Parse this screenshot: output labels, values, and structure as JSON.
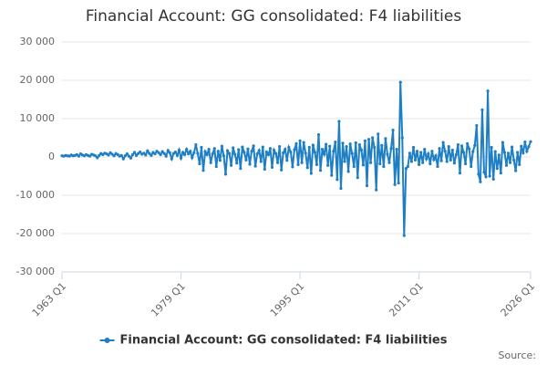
{
  "chart_data": {
    "type": "line",
    "title": "Financial Account: GG consolidated: F4 liabilities",
    "source": "Source:",
    "categories": [
      "1963 Q1",
      null,
      null,
      null,
      null,
      null,
      null,
      null,
      null,
      null,
      null,
      null,
      null,
      null,
      null,
      null,
      null,
      null,
      null,
      null,
      null,
      null,
      null,
      null,
      null,
      null,
      null,
      null,
      null,
      null,
      null,
      null,
      null,
      null,
      null,
      null,
      null,
      null,
      null,
      null,
      null,
      null,
      null,
      null,
      null,
      null,
      null,
      null,
      null,
      null,
      null,
      null,
      null,
      null,
      null,
      null,
      null,
      null,
      null,
      null,
      null,
      null,
      null,
      null,
      "1979 Q1",
      null,
      null,
      null,
      null,
      null,
      null,
      null,
      null,
      null,
      null,
      null,
      null,
      null,
      null,
      null,
      null,
      null,
      null,
      null,
      null,
      null,
      null,
      null,
      null,
      null,
      null,
      null,
      null,
      null,
      null,
      null,
      null,
      null,
      null,
      null,
      null,
      null,
      null,
      null,
      null,
      null,
      null,
      null,
      null,
      null,
      null,
      null,
      null,
      null,
      null,
      null,
      null,
      null,
      null,
      null,
      null,
      null,
      null,
      null,
      null,
      null,
      null,
      null,
      "1995 Q1",
      null,
      null,
      null,
      null,
      null,
      null,
      null,
      null,
      null,
      null,
      null,
      null,
      null,
      null,
      null,
      null,
      null,
      null,
      null,
      null,
      null,
      null,
      null,
      null,
      null,
      null,
      null,
      null,
      null,
      null,
      null,
      null,
      null,
      null,
      null,
      null,
      null,
      null,
      null,
      null,
      null,
      null,
      null,
      null,
      null,
      null,
      null,
      null,
      null,
      null,
      null,
      null,
      null,
      null,
      null,
      null,
      null,
      null,
      null,
      null,
      null,
      null,
      null,
      "2011 Q1",
      null,
      null,
      null,
      null,
      null,
      null,
      null,
      null,
      null,
      null,
      null,
      null,
      null,
      null,
      null,
      null,
      null,
      null,
      null,
      null,
      null,
      null,
      null,
      null,
      null,
      null,
      null,
      null,
      null,
      null,
      null,
      null,
      null,
      null,
      null,
      null,
      null,
      null,
      null,
      null,
      null,
      null,
      null,
      null,
      null,
      null,
      null,
      null,
      null,
      null,
      null,
      null,
      null,
      null,
      null,
      null,
      null,
      null,
      null,
      "2026 Q1"
    ],
    "series": [
      {
        "name": "Financial Account: GG consolidated: F4 liabilities",
        "color": "#1f7fc4",
        "values": [
          300,
          200,
          400,
          300,
          200,
          500,
          300,
          400,
          600,
          200,
          800,
          500,
          300,
          600,
          400,
          200,
          700,
          500,
          300,
          -200,
          400,
          900,
          600,
          1000,
          800,
          500,
          1100,
          700,
          300,
          900,
          600,
          200,
          400,
          -500,
          300,
          800,
          200,
          -300,
          600,
          1200,
          400,
          900,
          1300,
          700,
          1000,
          500,
          1600,
          900,
          400,
          1200,
          800,
          1500,
          1100,
          600,
          1400,
          900,
          200,
          1700,
          1100,
          -500,
          900,
          1300,
          400,
          1800,
          -300,
          1200,
          600,
          2000,
          800,
          1500,
          -200,
          1100,
          3200,
          900,
          -1800,
          2500,
          -3500,
          1400,
          600,
          2000,
          -1500,
          800,
          2200,
          -2500,
          1500,
          -900,
          2800,
          300,
          -4500,
          1600,
          900,
          -2200,
          2400,
          700,
          -1600,
          1900,
          -3000,
          2600,
          1200,
          -800,
          2100,
          -1900,
          1500,
          2900,
          -2400,
          800,
          1700,
          -1200,
          2600,
          -3200,
          1300,
          600,
          2200,
          -2700,
          1800,
          900,
          -1500,
          2700,
          -3400,
          1100,
          2000,
          -900,
          2500,
          1300,
          -2600,
          1900,
          3500,
          -2000,
          4200,
          -1500,
          3800,
          1000,
          -2800,
          2500,
          -4300,
          3100,
          1200,
          -2000,
          5800,
          -3500,
          2000,
          700,
          3300,
          -2200,
          2800,
          -4800,
          1500,
          3900,
          -5900,
          9300,
          -8200,
          3600,
          -1200,
          2700,
          -3800,
          3400,
          900,
          -2500,
          3700,
          -5400,
          3200,
          1800,
          -2100,
          4200,
          -7500,
          4600,
          -1500,
          5000,
          2500,
          -8600,
          6000,
          -1800,
          3000,
          -2500,
          4800,
          700,
          -1500,
          2200,
          7000,
          -7200,
          2000,
          -6800,
          19500,
          5000,
          -20500,
          -3000,
          -2500,
          1000,
          -1200,
          2500,
          -800,
          1500,
          -2000,
          1200,
          -1500,
          2000,
          -500,
          800,
          -1800,
          1500,
          -700,
          300,
          -2500,
          2200,
          -1000,
          3800,
          1500,
          -1200,
          2700,
          -800,
          1800,
          -1600,
          600,
          3200,
          -4200,
          2900,
          1200,
          -1800,
          3500,
          2100,
          -2500,
          1400,
          3000,
          8200,
          -4500,
          -6500,
          12300,
          -4000,
          -5200,
          17200,
          -5000,
          2500,
          -5800,
          1400,
          -3000,
          500,
          -4200,
          3800,
          1200,
          -2200,
          1000,
          -1500,
          2600,
          -800,
          -3600,
          1200,
          -2000,
          2800,
          1000,
          3900,
          1500,
          2700,
          4000
        ]
      }
    ],
    "ylim": [
      -30000,
      30000
    ],
    "yticks": [
      {
        "value": -30000,
        "label": "-30 000"
      },
      {
        "value": -20000,
        "label": "-20 000"
      },
      {
        "value": -10000,
        "label": "-10 000"
      },
      0,
      {
        "value": 10000,
        "label": "10 000"
      },
      {
        "value": 20000,
        "label": "20 000"
      },
      {
        "value": 30000,
        "label": "30 000"
      }
    ],
    "grid": true,
    "legend": "bottom"
  }
}
